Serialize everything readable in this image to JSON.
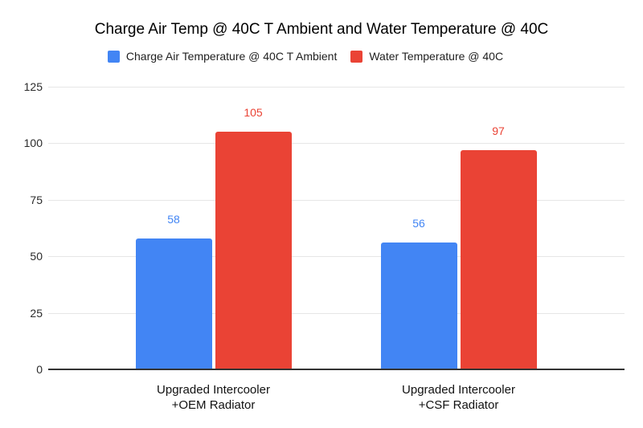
{
  "chart_data": {
    "type": "bar",
    "title": "Charge Air Temp @ 40C T Ambient and Water Temperature @ 40C",
    "categories": [
      "Upgraded Intercooler\n+OEM Radiator",
      "Upgraded Intercooler\n+CSF Radiator"
    ],
    "series": [
      {
        "name": "Charge Air Temperature @ 40C T Ambient",
        "color": "#4285F4",
        "values": [
          58,
          56
        ]
      },
      {
        "name": "Water Temperature @ 40C",
        "color": "#EA4335",
        "values": [
          105,
          97
        ]
      }
    ],
    "xlabel": "",
    "ylabel": "",
    "ylim": [
      0,
      125
    ],
    "yticks": [
      0,
      25,
      50,
      75,
      100,
      125
    ],
    "grid": true,
    "legend_position": "top",
    "data_labels": true,
    "colors": {
      "background": "#ffffff",
      "gridline": "#e6e6e6",
      "axis_line": "#333333",
      "tick_text": "#2b2b2b",
      "category_text": "#111111",
      "title_text": "#000000",
      "legend_text": "#212121"
    }
  }
}
